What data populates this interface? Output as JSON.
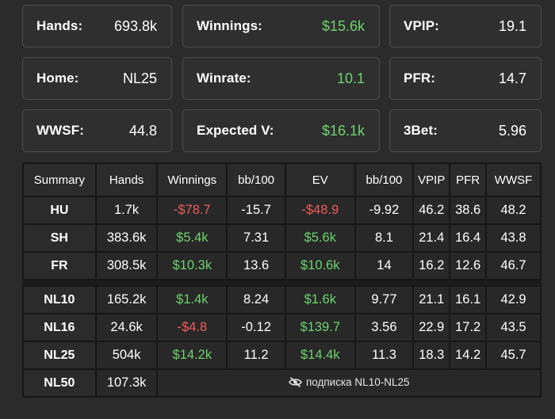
{
  "cards": [
    {
      "label": "Hands:",
      "value": "693.8k",
      "color": "#ffffff"
    },
    {
      "label": "Winnings:",
      "value": "$15.6k",
      "color": "#6cd46c"
    },
    {
      "label": "VPIP:",
      "value": "19.1",
      "color": "#ffffff"
    },
    {
      "label": "Home:",
      "value": "NL25",
      "color": "#ffffff"
    },
    {
      "label": "Winrate:",
      "value": "10.1",
      "color": "#6cd46c"
    },
    {
      "label": "PFR:",
      "value": "14.7",
      "color": "#ffffff"
    },
    {
      "label": "WWSF:",
      "value": "44.8",
      "color": "#ffffff"
    },
    {
      "label": "Expected V:",
      "value": "$16.1k",
      "color": "#6cd46c"
    },
    {
      "label": "3Bet:",
      "value": "5.96",
      "color": "#ffffff"
    }
  ],
  "table": {
    "headers": [
      "Summary",
      "Hands",
      "Winnings",
      "bb/100",
      "EV",
      "bb/100",
      "VPIP",
      "PFR",
      "WWSF"
    ],
    "rows_by_table": [
      [
        "HU",
        "1.7k",
        "-$78.7",
        "-15.7",
        "-$48.9",
        "-9.92",
        "46.2",
        "38.6",
        "48.2"
      ],
      [
        "SH",
        "383.6k",
        "$5.4k",
        "7.31",
        "$5.6k",
        "8.1",
        "21.4",
        "16.4",
        "43.8"
      ],
      [
        "FR",
        "308.5k",
        "$10.3k",
        "13.6",
        "$10.6k",
        "14",
        "16.2",
        "12.6",
        "46.7"
      ]
    ],
    "rows_by_limit": [
      [
        "NL10",
        "165.2k",
        "$1.4k",
        "8.24",
        "$1.6k",
        "9.77",
        "21.1",
        "16.1",
        "42.9"
      ],
      [
        "NL16",
        "24.6k",
        "-$4.8",
        "-0.12",
        "$139.7",
        "3.56",
        "22.9",
        "17.2",
        "43.5"
      ],
      [
        "NL25",
        "504k",
        "$14.2k",
        "11.2",
        "$14.4k",
        "11.3",
        "18.3",
        "14.2",
        "45.7"
      ]
    ],
    "locked_row": {
      "name": "NL50",
      "hands": "107.3k",
      "message": "подписка NL10-NL25"
    }
  },
  "colors": {
    "positive": "#6cd46c",
    "negative": "#ee5d5d"
  }
}
